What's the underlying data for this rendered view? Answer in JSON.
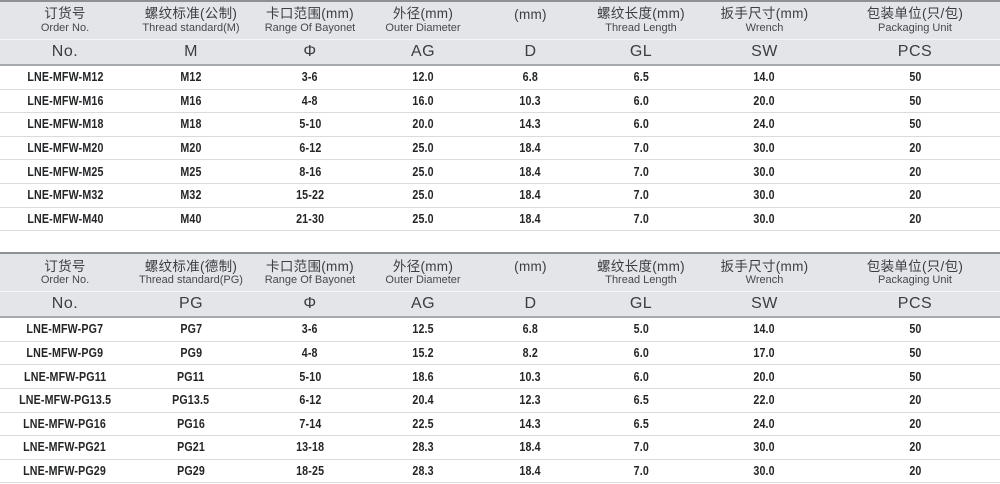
{
  "colors": {
    "header_bg": "#e3e5e9",
    "table_top_border": "#8d9196",
    "header_bottom_border": "#a6aaaf",
    "row_divider": "#d9dbde",
    "data_text": "#232527",
    "header_text": "#3a3d41"
  },
  "tables": [
    {
      "id": "metric",
      "columns": [
        {
          "cn": "订货号",
          "en": "Order No.",
          "symbol": "No."
        },
        {
          "cn": "螺纹标准(公制)",
          "en": "Thread standard(M)",
          "symbol": "M"
        },
        {
          "cn": "卡口范围(mm)",
          "en": "Range Of Bayonet",
          "symbol": "Φ"
        },
        {
          "cn": "外径(mm)",
          "en": "Outer Diameter",
          "symbol": "AG"
        },
        {
          "cn": "(mm)",
          "en": "",
          "symbol": "D"
        },
        {
          "cn": "螺纹长度(mm)",
          "en": "Thread Length",
          "symbol": "GL"
        },
        {
          "cn": "扳手尺寸(mm)",
          "en": "Wrench",
          "symbol": "SW"
        },
        {
          "cn": "包装单位(只/包)",
          "en": "Packaging Unit",
          "symbol": "PCS"
        }
      ],
      "rows": [
        [
          "LNE-MFW-M12",
          "M12",
          "3-6",
          "12.0",
          "6.8",
          "6.5",
          "14.0",
          "50"
        ],
        [
          "LNE-MFW-M16",
          "M16",
          "4-8",
          "16.0",
          "10.3",
          "6.0",
          "20.0",
          "50"
        ],
        [
          "LNE-MFW-M18",
          "M18",
          "5-10",
          "20.0",
          "14.3",
          "6.0",
          "24.0",
          "50"
        ],
        [
          "LNE-MFW-M20",
          "M20",
          "6-12",
          "25.0",
          "18.4",
          "7.0",
          "30.0",
          "20"
        ],
        [
          "LNE-MFW-M25",
          "M25",
          "8-16",
          "25.0",
          "18.4",
          "7.0",
          "30.0",
          "20"
        ],
        [
          "LNE-MFW-M32",
          "M32",
          "15-22",
          "25.0",
          "18.4",
          "7.0",
          "30.0",
          "20"
        ],
        [
          "LNE-MFW-M40",
          "M40",
          "21-30",
          "25.0",
          "18.4",
          "7.0",
          "30.0",
          "20"
        ]
      ]
    },
    {
      "id": "pg",
      "columns": [
        {
          "cn": "订货号",
          "en": "Order No.",
          "symbol": "No."
        },
        {
          "cn": "螺纹标准(德制)",
          "en": "Thread standard(PG)",
          "symbol": "PG"
        },
        {
          "cn": "卡口范围(mm)",
          "en": "Range Of Bayonet",
          "symbol": "Φ"
        },
        {
          "cn": "外径(mm)",
          "en": "Outer Diameter",
          "symbol": "AG"
        },
        {
          "cn": "(mm)",
          "en": "",
          "symbol": "D"
        },
        {
          "cn": "螺纹长度(mm)",
          "en": "Thread Length",
          "symbol": "GL"
        },
        {
          "cn": "扳手尺寸(mm)",
          "en": "Wrench",
          "symbol": "SW"
        },
        {
          "cn": "包装单位(只/包)",
          "en": "Packaging Unit",
          "symbol": "PCS"
        }
      ],
      "rows": [
        [
          "LNE-MFW-PG7",
          "PG7",
          "3-6",
          "12.5",
          "6.8",
          "5.0",
          "14.0",
          "50"
        ],
        [
          "LNE-MFW-PG9",
          "PG9",
          "4-8",
          "15.2",
          "8.2",
          "6.0",
          "17.0",
          "50"
        ],
        [
          "LNE-MFW-PG11",
          "PG11",
          "5-10",
          "18.6",
          "10.3",
          "6.0",
          "20.0",
          "50"
        ],
        [
          "LNE-MFW-PG13.5",
          "PG13.5",
          "6-12",
          "20.4",
          "12.3",
          "6.5",
          "22.0",
          "20"
        ],
        [
          "LNE-MFW-PG16",
          "PG16",
          "7-14",
          "22.5",
          "14.3",
          "6.5",
          "24.0",
          "20"
        ],
        [
          "LNE-MFW-PG21",
          "PG21",
          "13-18",
          "28.3",
          "18.4",
          "7.0",
          "30.0",
          "20"
        ],
        [
          "LNE-MFW-PG29",
          "PG29",
          "18-25",
          "28.3",
          "18.4",
          "7.0",
          "30.0",
          "20"
        ]
      ]
    }
  ]
}
